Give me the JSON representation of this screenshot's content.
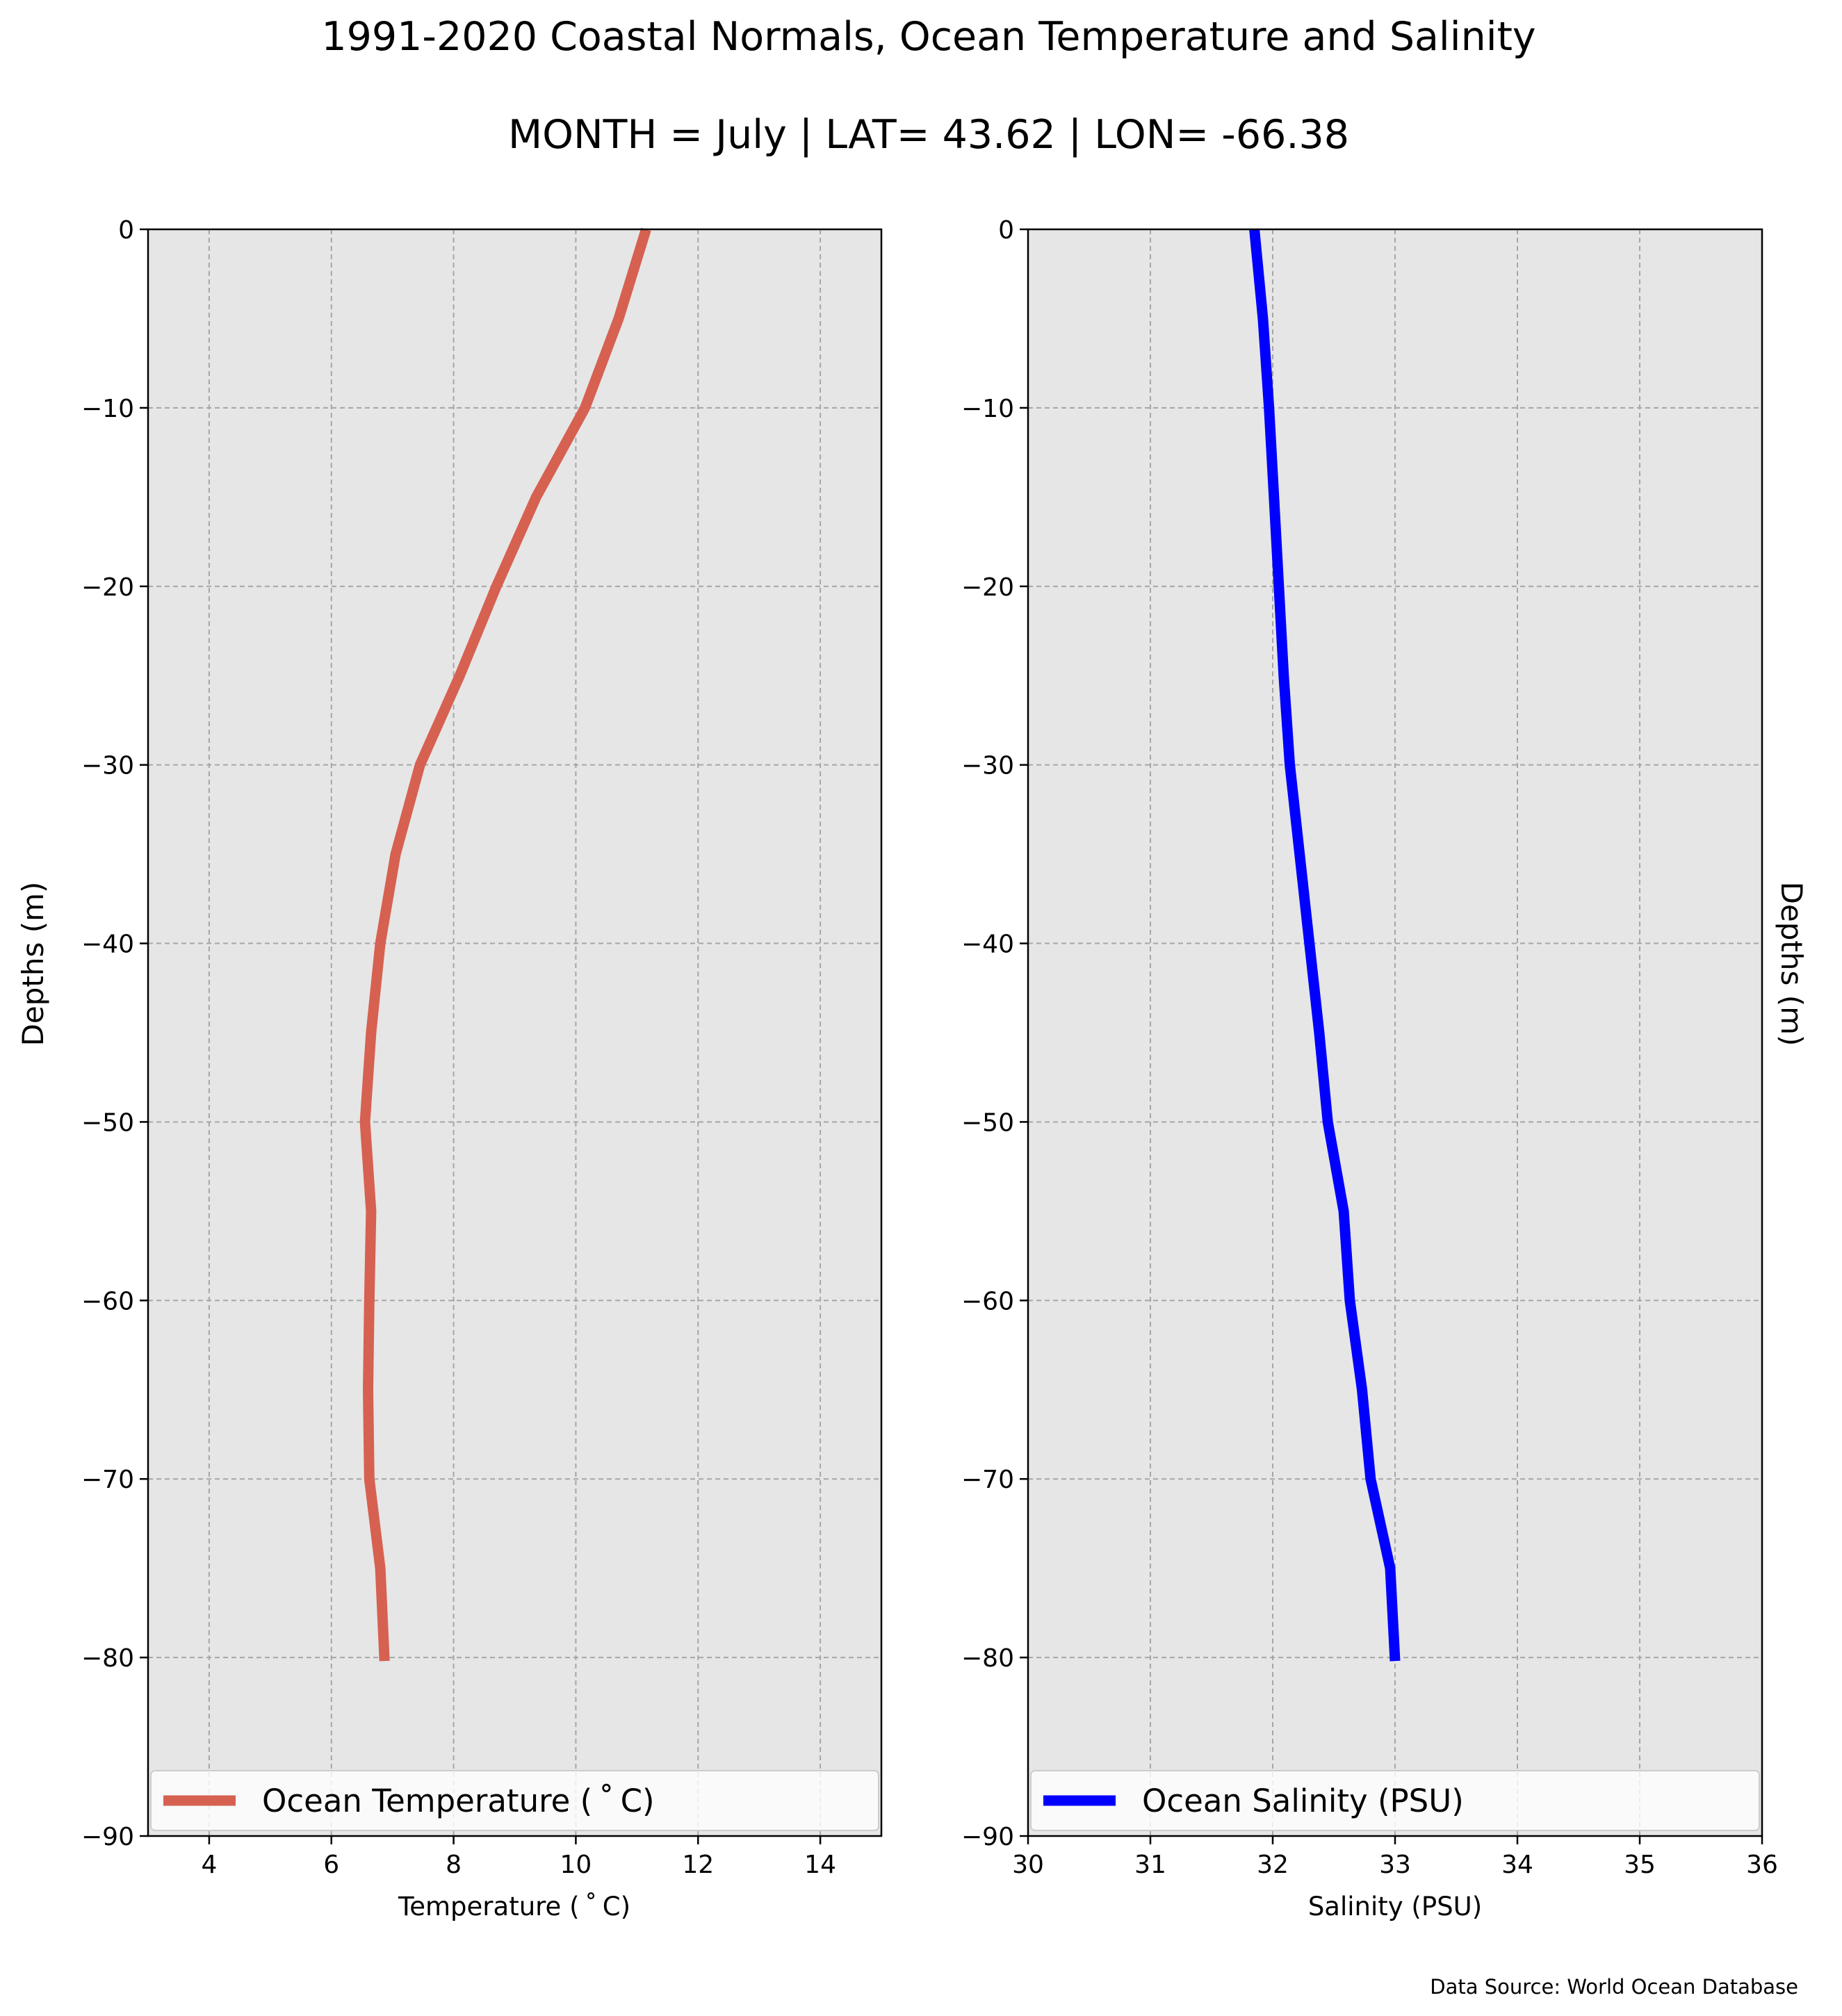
{
  "figure": {
    "title": "1991-2020 Coastal Normals, Ocean Temperature and Salinity",
    "subtitle": "MONTH = July | LAT= 43.62 | LON= -66.38",
    "source_note": "Data Source: World Ocean Database"
  },
  "chart_data": [
    {
      "type": "line",
      "xlabel": "Temperature ($^\\circ$C)",
      "xlabel_display": "Temperature ( ˚ C)",
      "ylabel": "Depths (m)",
      "xlim": [
        3,
        15
      ],
      "ylim": [
        -90,
        0
      ],
      "xticks": [
        4,
        6,
        8,
        10,
        12,
        14
      ],
      "xtick_labels": [
        "4",
        "6",
        "8",
        "10",
        "12",
        "14"
      ],
      "yticks": [
        0,
        -10,
        -20,
        -30,
        -40,
        -50,
        -60,
        -70,
        -80,
        -90
      ],
      "ytick_labels": [
        "0",
        "−10",
        "−20",
        "−30",
        "−40",
        "−50",
        "−60",
        "−70",
        "−80",
        "−90"
      ],
      "grid": true,
      "legend_placement": "lower-center",
      "series": [
        {
          "name": "Ocean Temperature ( ˚ C)",
          "color": "#d66151",
          "x": [
            11.15,
            10.7,
            10.15,
            9.35,
            8.7,
            8.1,
            7.45,
            7.05,
            6.8,
            6.65,
            6.55,
            6.65,
            6.62,
            6.6,
            6.62,
            6.8,
            6.87
          ],
          "y": [
            0,
            -5,
            -10,
            -15,
            -20,
            -25,
            -30,
            -35,
            -40,
            -45,
            -50,
            -55,
            -60,
            -65,
            -70,
            -75,
            -80.2
          ]
        }
      ]
    },
    {
      "type": "line",
      "xlabel": "Salinity (PSU)",
      "ylabel": "Depths (m)",
      "ylabel_side": "right",
      "xlim": [
        30,
        36
      ],
      "ylim": [
        -90,
        0
      ],
      "xticks": [
        30,
        31,
        32,
        33,
        34,
        35,
        36
      ],
      "xtick_labels": [
        "30",
        "31",
        "32",
        "33",
        "34",
        "35",
        "36"
      ],
      "yticks": [
        0,
        -10,
        -20,
        -30,
        -40,
        -50,
        -60,
        -70,
        -80,
        -90
      ],
      "ytick_labels": [
        "0",
        "−10",
        "−20",
        "−30",
        "−40",
        "−50",
        "−60",
        "−70",
        "−80",
        "−90"
      ],
      "grid": true,
      "legend_placement": "lower-center",
      "series": [
        {
          "name": "Ocean Salinity (PSU)",
          "color": "#0000ff",
          "x": [
            31.85,
            31.92,
            31.97,
            32.01,
            32.05,
            32.09,
            32.14,
            32.22,
            32.3,
            32.38,
            32.45,
            32.58,
            32.63,
            32.73,
            32.8,
            32.96,
            33.0
          ],
          "y": [
            0,
            -5,
            -10,
            -15,
            -20,
            -25,
            -30,
            -35,
            -40,
            -45,
            -50,
            -55,
            -60,
            -65,
            -70,
            -75,
            -80.2
          ]
        }
      ]
    }
  ]
}
